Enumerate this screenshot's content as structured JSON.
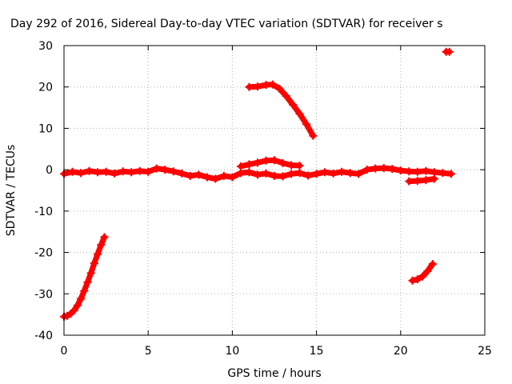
{
  "chart_data": {
    "type": "scatter",
    "title": "Day 292 of 2016, Sidereal Day-to-day VTEC variation (SDTVAR) for receiver s",
    "xlabel": "GPS time / hours",
    "ylabel": "SDTVAR / TECUs",
    "xlim": [
      0,
      25
    ],
    "ylim": [
      -40,
      30
    ],
    "xticks": [
      0,
      5,
      10,
      15,
      20,
      25
    ],
    "yticks": [
      -40,
      -30,
      -20,
      -10,
      0,
      10,
      20,
      30
    ],
    "grid": true,
    "legend": "none",
    "color": "#ff0000",
    "marker": "plus",
    "series": [
      {
        "name": "track-rising-early",
        "points": [
          [
            0.0,
            -35.5
          ],
          [
            0.2,
            -35.3
          ],
          [
            0.4,
            -34.8
          ],
          [
            0.6,
            -34.0
          ],
          [
            0.8,
            -32.8
          ],
          [
            1.0,
            -31.2
          ],
          [
            1.2,
            -29.3
          ],
          [
            1.4,
            -27.2
          ],
          [
            1.6,
            -25.0
          ],
          [
            1.8,
            -22.6
          ],
          [
            2.0,
            -20.4
          ],
          [
            2.2,
            -18.2
          ],
          [
            2.4,
            -16.3
          ]
        ]
      },
      {
        "name": "track-near-zero-main",
        "points": [
          [
            0.0,
            -1.0
          ],
          [
            0.5,
            -0.5
          ],
          [
            1.0,
            -0.8
          ],
          [
            1.5,
            -0.3
          ],
          [
            2.0,
            -0.6
          ],
          [
            2.5,
            -0.5
          ],
          [
            3.0,
            -0.9
          ],
          [
            3.5,
            -0.4
          ],
          [
            4.0,
            -0.6
          ],
          [
            4.5,
            -0.3
          ],
          [
            5.0,
            -0.5
          ],
          [
            5.5,
            0.3
          ],
          [
            6.0,
            0.0
          ],
          [
            6.5,
            -0.4
          ],
          [
            7.0,
            -0.9
          ],
          [
            7.5,
            -1.5
          ],
          [
            8.0,
            -1.2
          ],
          [
            8.5,
            -1.8
          ],
          [
            9.0,
            -2.2
          ],
          [
            9.5,
            -1.5
          ],
          [
            10.0,
            -1.8
          ],
          [
            10.5,
            -0.8
          ],
          [
            11.0,
            -0.6
          ],
          [
            11.5,
            -1.2
          ],
          [
            12.0,
            -0.9
          ],
          [
            12.5,
            -1.5
          ],
          [
            13.0,
            -1.6
          ],
          [
            13.5,
            -1.0
          ],
          [
            14.0,
            -0.8
          ],
          [
            14.5,
            -1.4
          ],
          [
            15.0,
            -1.0
          ],
          [
            15.5,
            -0.6
          ],
          [
            16.0,
            -0.9
          ],
          [
            16.5,
            -0.5
          ],
          [
            17.0,
            -0.8
          ],
          [
            17.5,
            -1.0
          ],
          [
            18.0,
            0.0
          ],
          [
            18.5,
            0.3
          ],
          [
            19.0,
            0.4
          ],
          [
            19.5,
            0.2
          ],
          [
            20.0,
            -0.2
          ],
          [
            20.5,
            -0.4
          ],
          [
            21.0,
            -0.5
          ],
          [
            21.5,
            -0.3
          ],
          [
            22.0,
            -0.6
          ],
          [
            22.5,
            -0.8
          ],
          [
            23.0,
            -1.0
          ]
        ]
      },
      {
        "name": "track-upper-arc",
        "points": [
          [
            10.5,
            0.8
          ],
          [
            11.0,
            1.3
          ],
          [
            11.5,
            1.7
          ],
          [
            12.0,
            2.2
          ],
          [
            12.5,
            2.3
          ],
          [
            13.0,
            1.6
          ],
          [
            13.5,
            1.1
          ],
          [
            14.0,
            1.0
          ]
        ]
      },
      {
        "name": "track-offset-segment",
        "points": [
          [
            20.5,
            -2.8
          ],
          [
            21.0,
            -2.7
          ],
          [
            21.5,
            -2.5
          ],
          [
            22.0,
            -2.2
          ]
        ]
      },
      {
        "name": "track-descending",
        "points": [
          [
            11.0,
            20.0
          ],
          [
            11.5,
            20.1
          ],
          [
            12.0,
            20.5
          ],
          [
            12.4,
            20.6
          ],
          [
            12.8,
            19.6
          ],
          [
            13.2,
            17.8
          ],
          [
            13.6,
            15.7
          ],
          [
            14.0,
            13.5
          ],
          [
            14.4,
            11.0
          ],
          [
            14.8,
            8.2
          ]
        ]
      },
      {
        "name": "track-late-rising",
        "points": [
          [
            20.7,
            -26.8
          ],
          [
            21.0,
            -26.5
          ],
          [
            21.3,
            -25.8
          ],
          [
            21.6,
            -24.5
          ],
          [
            21.9,
            -22.8
          ]
        ]
      },
      {
        "name": "track-single-point",
        "points": [
          [
            22.7,
            28.5
          ],
          [
            22.9,
            28.5
          ]
        ]
      }
    ]
  }
}
